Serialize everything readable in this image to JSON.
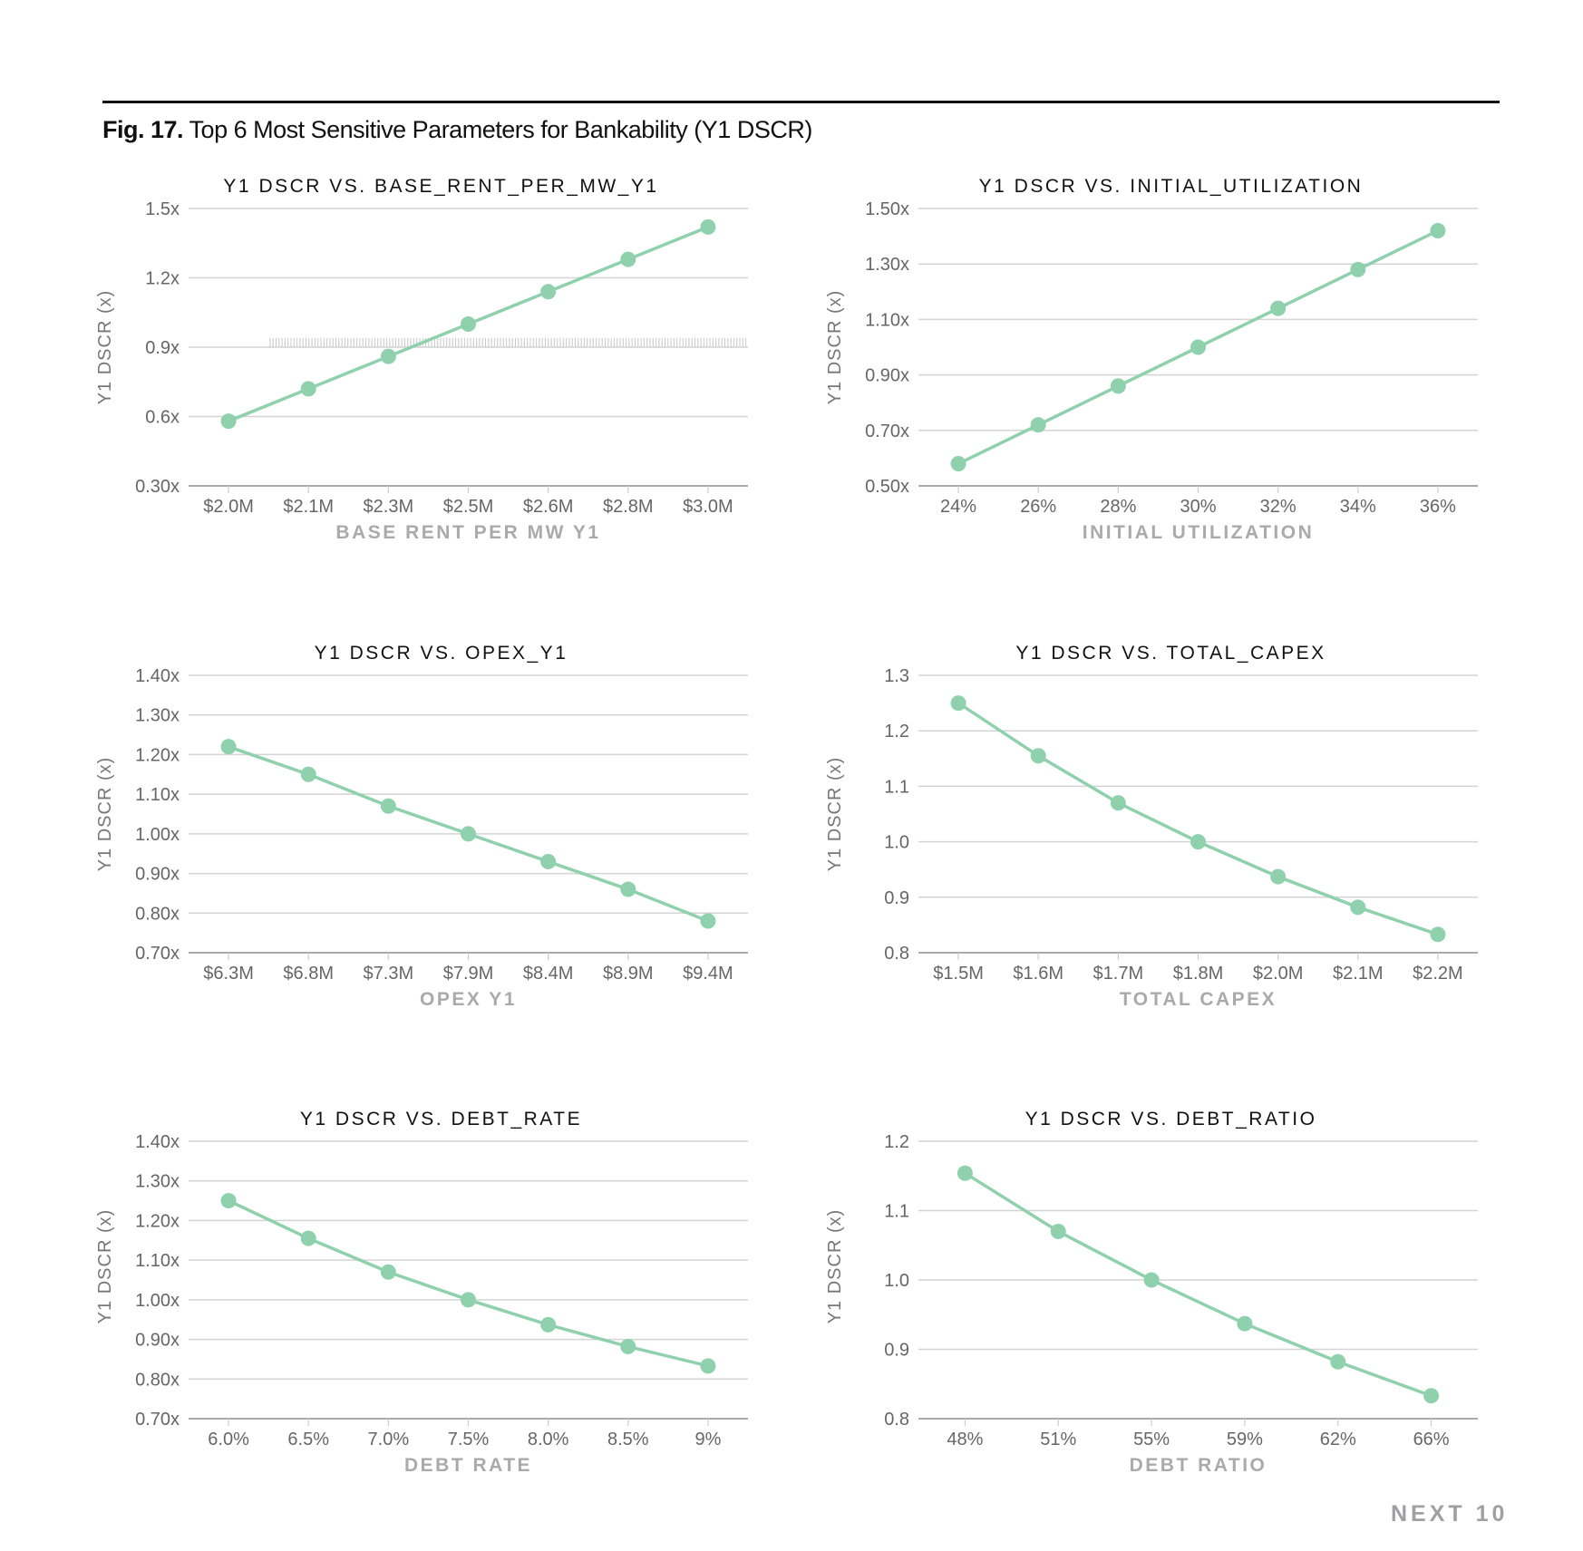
{
  "figure": {
    "label": "Fig. 17.",
    "title": "Top 6 Most Sensitive Parameters for Bankability (Y1 DSCR)",
    "brand": "NEXT 10",
    "line_color": "#8fd1ad"
  },
  "chart_data": [
    {
      "type": "line",
      "title": "Y1 DSCR VS. BASE_RENT_PER_MW_Y1",
      "xlabel": "BASE RENT PER MW Y1",
      "ylabel": "Y1 DSCR (x)",
      "categories": [
        "$2.0M",
        "$2.1M",
        "$2.3M",
        "$2.5M",
        "$2.6M",
        "$2.8M",
        "$3.0M"
      ],
      "values": [
        0.58,
        0.72,
        0.86,
        1.0,
        1.14,
        1.28,
        1.42
      ],
      "ylim": [
        0.3,
        1.5
      ],
      "yticks": [
        0.3,
        0.6,
        0.9,
        1.2,
        1.5
      ],
      "ytick_labels": [
        "0.30x",
        "0.6x",
        "0.9x",
        "1.2x",
        "1.5x"
      ],
      "threshold": {
        "value": 0.92,
        "from_category_index": 0.52
      },
      "grid": true
    },
    {
      "type": "line",
      "title": "Y1 DSCR VS. INITIAL_UTILIZATION",
      "xlabel": "INITIAL UTILIZATION",
      "ylabel": "Y1 DSCR (x)",
      "categories": [
        "24%",
        "26%",
        "28%",
        "30%",
        "32%",
        "34%",
        "36%"
      ],
      "values": [
        0.58,
        0.72,
        0.86,
        1.0,
        1.14,
        1.28,
        1.42
      ],
      "ylim": [
        0.5,
        1.5
      ],
      "yticks": [
        0.5,
        0.7,
        0.9,
        1.1,
        1.3,
        1.5
      ],
      "ytick_labels": [
        "0.50x",
        "0.70x",
        "0.90x",
        "1.10x",
        "1.30x",
        "1.50x"
      ],
      "grid": true
    },
    {
      "type": "line",
      "title": "Y1 DSCR VS. OPEX_Y1",
      "xlabel": "OPEX Y1",
      "ylabel": "Y1 DSCR (x)",
      "categories": [
        "$6.3M",
        "$6.8M",
        "$7.3M",
        "$7.9M",
        "$8.4M",
        "$8.9M",
        "$9.4M"
      ],
      "values": [
        1.22,
        1.15,
        1.07,
        1.0,
        0.93,
        0.86,
        0.78
      ],
      "ylim": [
        0.7,
        1.4
      ],
      "yticks": [
        0.7,
        0.8,
        0.9,
        1.0,
        1.1,
        1.2,
        1.3,
        1.4
      ],
      "ytick_labels": [
        "0.70x",
        "0.80x",
        "0.90x",
        "1.00x",
        "1.10x",
        "1.20x",
        "1.30x",
        "1.40x"
      ],
      "grid": true
    },
    {
      "type": "line",
      "title": "Y1 DSCR VS. TOTAL_CAPEX",
      "xlabel": "TOTAL CAPEX",
      "ylabel": "Y1 DSCR (x)",
      "categories": [
        "$1.5M",
        "$1.6M",
        "$1.7M",
        "$1.8M",
        "$2.0M",
        "$2.1M",
        "$2.2M"
      ],
      "values": [
        1.25,
        1.155,
        1.07,
        1.0,
        0.937,
        0.882,
        0.833
      ],
      "ylim": [
        0.8,
        1.3
      ],
      "yticks": [
        0.8,
        0.9,
        1.0,
        1.1,
        1.2,
        1.3
      ],
      "ytick_labels": [
        "0.8",
        "0.9",
        "1.0",
        "1.1",
        "1.2",
        "1.3"
      ],
      "grid": true
    },
    {
      "type": "line",
      "title": "Y1 DSCR VS. DEBT_RATE",
      "xlabel": "DEBT RATE",
      "ylabel": "Y1 DSCR (x)",
      "categories": [
        "6.0%",
        "6.5%",
        "7.0%",
        "7.5%",
        "8.0%",
        "8.5%",
        "9%"
      ],
      "values": [
        1.25,
        1.155,
        1.07,
        1.0,
        0.937,
        0.882,
        0.833
      ],
      "ylim": [
        0.7,
        1.4
      ],
      "yticks": [
        0.7,
        0.8,
        0.9,
        1.0,
        1.1,
        1.2,
        1.3,
        1.4
      ],
      "ytick_labels": [
        "0.70x",
        "0.80x",
        "0.90x",
        "1.00x",
        "1.10x",
        "1.20x",
        "1.30x",
        "1.40x"
      ],
      "grid": true
    },
    {
      "type": "line",
      "title": "Y1 DSCR VS. DEBT_RATIO",
      "xlabel": "DEBT RATIO",
      "ylabel": "Y1 DSCR (x)",
      "categories": [
        "48%",
        "51%",
        "55%",
        "59%",
        "62%",
        "66%"
      ],
      "values": [
        1.154,
        1.07,
        1.0,
        0.937,
        0.882,
        0.833
      ],
      "ylim": [
        0.8,
        1.2
      ],
      "yticks": [
        0.8,
        0.9,
        1.0,
        1.1,
        1.2
      ],
      "ytick_labels": [
        "0.8",
        "0.9",
        "1.0",
        "1.1",
        "1.2"
      ],
      "grid": true
    }
  ]
}
